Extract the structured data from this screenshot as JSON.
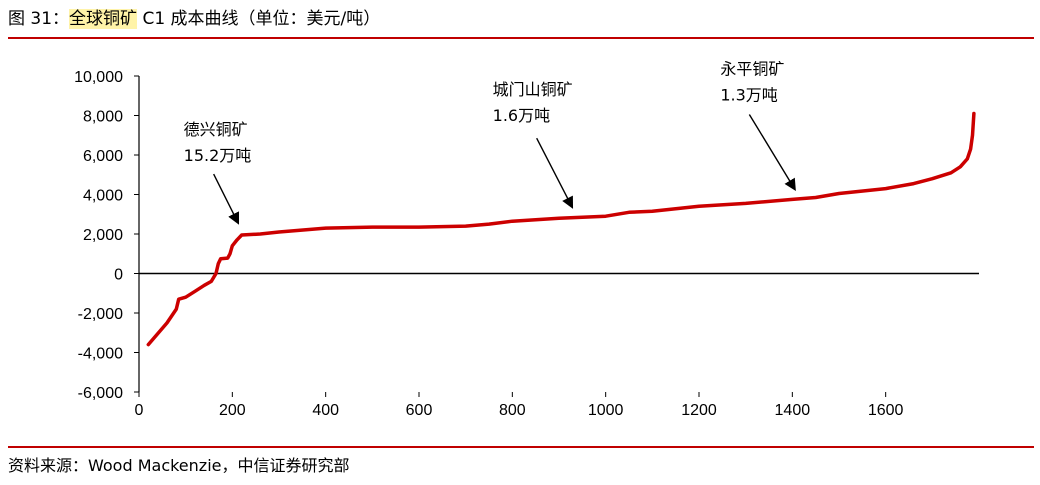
{
  "header": {
    "title_prefix": "图 31：",
    "title_highlight": "全球铜矿",
    "title_suffix": " C1 成本曲线（单位：美元/吨）"
  },
  "footer": {
    "source": "资料来源：Wood Mackenzie，中信证券研究部"
  },
  "chart_data": {
    "type": "area",
    "title": "全球铜矿 C1 成本曲线（单位：美元/吨）",
    "unit": "美元/吨",
    "xlabel": "",
    "ylabel": "",
    "xlim": [
      0,
      1800
    ],
    "ylim": [
      -6000,
      10000
    ],
    "x_ticks": [
      0,
      200,
      400,
      600,
      800,
      1000,
      1200,
      1400,
      1600
    ],
    "x_tick_labels": [
      "0",
      "200",
      "400",
      "600",
      "800",
      "1000",
      "1200",
      "1400",
      "1600"
    ],
    "y_ticks": [
      -6000,
      -4000,
      -2000,
      0,
      2000,
      4000,
      6000,
      8000,
      10000
    ],
    "y_tick_labels": [
      "-6,000",
      "-4,000",
      "-2,000",
      "0",
      "2,000",
      "4,000",
      "6,000",
      "8,000",
      "10,000"
    ],
    "grid": false,
    "legend": "none",
    "series": [
      {
        "color": "#cc0000",
        "points": [
          [
            20,
            -3600
          ],
          [
            60,
            -2500
          ],
          [
            80,
            -1800
          ],
          [
            85,
            -1300
          ],
          [
            100,
            -1200
          ],
          [
            120,
            -900
          ],
          [
            140,
            -600
          ],
          [
            155,
            -400
          ],
          [
            165,
            0
          ],
          [
            170,
            500
          ],
          [
            175,
            750
          ],
          [
            190,
            780
          ],
          [
            195,
            1000
          ],
          [
            200,
            1400
          ],
          [
            210,
            1700
          ],
          [
            220,
            1950
          ],
          [
            260,
            2000
          ],
          [
            300,
            2100
          ],
          [
            400,
            2300
          ],
          [
            500,
            2350
          ],
          [
            600,
            2350
          ],
          [
            700,
            2400
          ],
          [
            750,
            2500
          ],
          [
            800,
            2650
          ],
          [
            900,
            2800
          ],
          [
            1000,
            2900
          ],
          [
            1050,
            3100
          ],
          [
            1100,
            3150
          ],
          [
            1200,
            3400
          ],
          [
            1300,
            3550
          ],
          [
            1400,
            3750
          ],
          [
            1450,
            3850
          ],
          [
            1500,
            4050
          ],
          [
            1600,
            4300
          ],
          [
            1660,
            4550
          ],
          [
            1700,
            4800
          ],
          [
            1740,
            5100
          ],
          [
            1760,
            5400
          ],
          [
            1775,
            5800
          ],
          [
            1782,
            6300
          ],
          [
            1786,
            7000
          ],
          [
            1789,
            8100
          ]
        ]
      }
    ],
    "annotations": [
      {
        "lines": [
          "德兴铜矿",
          "15.2万吨"
        ],
        "x": 220,
        "y": 2100
      },
      {
        "lines": [
          "城门山铜矿",
          "1.6万吨"
        ],
        "x": 940,
        "y": 2850
      },
      {
        "lines": [
          "永平铜矿",
          "1.3万吨"
        ],
        "x": 1430,
        "y": 3800
      }
    ]
  }
}
